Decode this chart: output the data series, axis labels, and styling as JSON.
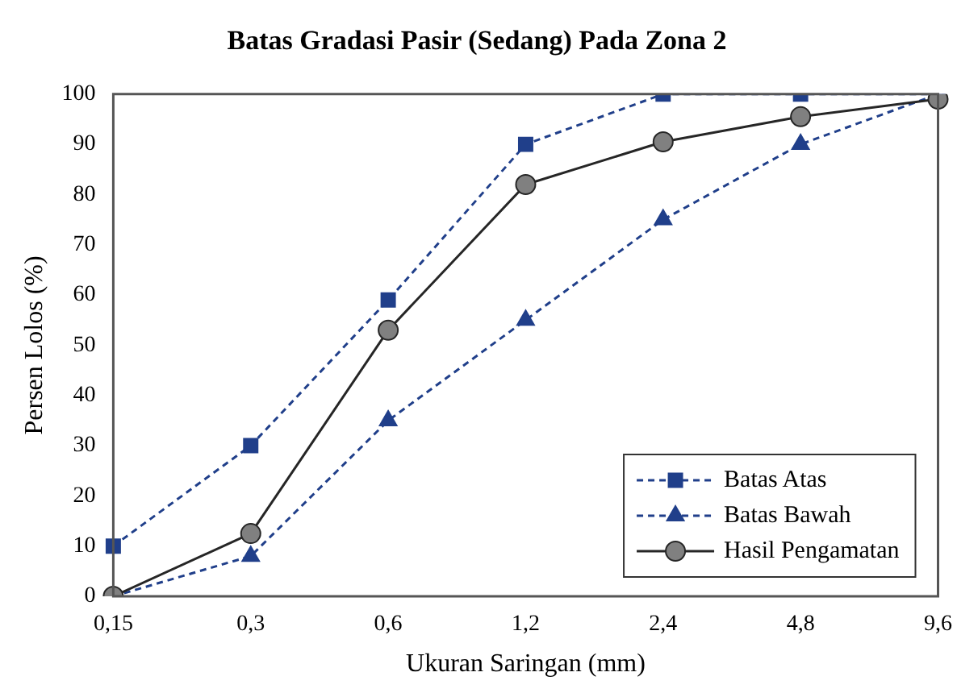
{
  "chart_data": {
    "type": "line",
    "title": "Batas Gradasi Pasir (Sedang) Pada Zona 2",
    "xlabel": "Ukuran Saringan (mm)",
    "ylabel": "Persen Lolos (%)",
    "categories": [
      "0,15",
      "0,3",
      "0,6",
      "1,2",
      "2,4",
      "4,8",
      "9,6"
    ],
    "ylim": [
      0,
      100
    ],
    "yticks": [
      0,
      10,
      20,
      30,
      40,
      50,
      60,
      70,
      80,
      90,
      100
    ],
    "grid": false,
    "legend": "bottom right",
    "series": [
      {
        "name": "Batas Atas",
        "color": "#203f8a",
        "marker": "square",
        "line_style": "dashed",
        "values": [
          10,
          30,
          59,
          90,
          100,
          100,
          100
        ]
      },
      {
        "name": "Batas Bawah",
        "color": "#203f8a",
        "marker": "triangle",
        "line_style": "dashed",
        "values": [
          0,
          8,
          35,
          55,
          75,
          90,
          100
        ]
      },
      {
        "name": "Hasil Pengamatan",
        "color": "#262626",
        "marker": "circle",
        "line_style": "solid",
        "values": [
          0,
          12.5,
          53,
          82,
          90.5,
          95.5,
          99
        ]
      }
    ]
  }
}
